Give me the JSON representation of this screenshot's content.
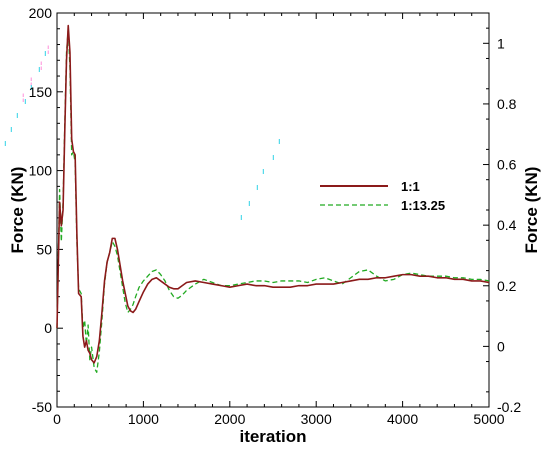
{
  "chart_data": {
    "type": "line",
    "xlabel": "iteration",
    "ylabel_left": "Force (KN)",
    "ylabel_right": "Force (KN)",
    "xlim": [
      0,
      5000
    ],
    "ylim_left": [
      -50,
      200
    ],
    "ylim_right": [
      -0.2,
      1.1
    ],
    "x_ticks": [
      "0",
      "1000",
      "2000",
      "3000",
      "4000",
      "5000"
    ],
    "y_ticks_left": [
      "-50",
      "0",
      "50",
      "100",
      "150",
      "200"
    ],
    "y_ticks_right": [
      "-0.2",
      "0",
      "0.2",
      "0.4",
      "0.6",
      "0.8",
      "1"
    ],
    "grid": false,
    "legend_position": "right-center",
    "series": [
      {
        "name": "1:1",
        "axis": "left",
        "style": "solid",
        "color": "#8b1a1a",
        "x": [
          0,
          30,
          50,
          70,
          90,
          110,
          130,
          150,
          170,
          190,
          210,
          230,
          250,
          280,
          300,
          320,
          340,
          360,
          380,
          400,
          430,
          460,
          490,
          520,
          550,
          580,
          610,
          640,
          670,
          700,
          730,
          760,
          790,
          820,
          850,
          880,
          910,
          950,
          1000,
          1050,
          1100,
          1150,
          1200,
          1250,
          1300,
          1350,
          1400,
          1450,
          1500,
          1600,
          1700,
          1800,
          1900,
          2000,
          2100,
          2200,
          2300,
          2400,
          2500,
          2600,
          2700,
          2800,
          2900,
          3000,
          3100,
          3200,
          3300,
          3400,
          3500,
          3600,
          3700,
          3800,
          3900,
          4000,
          4100,
          4200,
          4300,
          4400,
          4500,
          4600,
          4700,
          4800,
          4900,
          5000
        ],
        "y": [
          0,
          80,
          65,
          75,
          125,
          170,
          192,
          175,
          120,
          112,
          110,
          60,
          22,
          20,
          -5,
          -12,
          -8,
          -14,
          -16,
          -20,
          -22,
          -18,
          -8,
          10,
          30,
          42,
          48,
          57,
          57,
          50,
          40,
          30,
          22,
          14,
          11,
          10,
          12,
          17,
          23,
          28,
          31,
          32,
          30,
          28,
          26,
          25,
          25,
          27,
          29,
          30,
          29,
          28,
          27,
          26,
          27,
          28,
          27,
          27,
          26,
          26,
          26,
          27,
          27,
          28,
          28,
          28,
          29,
          30,
          31,
          31,
          32,
          32,
          33,
          34,
          34,
          33,
          33,
          32,
          32,
          31,
          31,
          30,
          30,
          29
        ]
      },
      {
        "name": "1:13.25",
        "axis": "left",
        "style": "dashed",
        "color": "#22aa22",
        "x": [
          0,
          30,
          50,
          70,
          90,
          110,
          130,
          150,
          170,
          190,
          210,
          230,
          250,
          280,
          300,
          320,
          340,
          360,
          380,
          400,
          430,
          460,
          490,
          520,
          550,
          580,
          610,
          640,
          670,
          700,
          730,
          760,
          790,
          820,
          850,
          880,
          910,
          950,
          1000,
          1050,
          1100,
          1150,
          1200,
          1250,
          1300,
          1350,
          1400,
          1450,
          1500,
          1600,
          1700,
          1800,
          1900,
          2000,
          2100,
          2200,
          2300,
          2400,
          2500,
          2600,
          2700,
          2800,
          2900,
          3000,
          3100,
          3200,
          3300,
          3400,
          3500,
          3600,
          3700,
          3800,
          3900,
          4000,
          4100,
          4200,
          4300,
          4400,
          4500,
          4600,
          4700,
          4800,
          4900,
          5000
        ],
        "y": [
          0,
          88,
          55,
          80,
          130,
          175,
          190,
          165,
          110,
          112,
          105,
          55,
          25,
          22,
          0,
          5,
          -10,
          2,
          -20,
          -12,
          -25,
          -28,
          -15,
          5,
          28,
          42,
          48,
          55,
          52,
          46,
          36,
          26,
          16,
          10,
          12,
          15,
          20,
          26,
          30,
          33,
          36,
          37,
          34,
          30,
          24,
          20,
          19,
          21,
          24,
          28,
          31,
          29,
          27,
          27,
          28,
          29,
          30,
          30,
          29,
          30,
          30,
          30,
          29,
          31,
          32,
          30,
          28,
          32,
          36,
          37,
          33,
          30,
          31,
          34,
          35,
          34,
          33,
          33,
          33,
          32,
          32,
          31,
          31,
          30
        ]
      }
    ]
  },
  "colors": {
    "frame": "#000000",
    "series_solid": "#8b1a1a",
    "series_dashed": "#22aa22",
    "marker_cyan": "#00c8e0",
    "marker_pink": "#ff66cc"
  }
}
